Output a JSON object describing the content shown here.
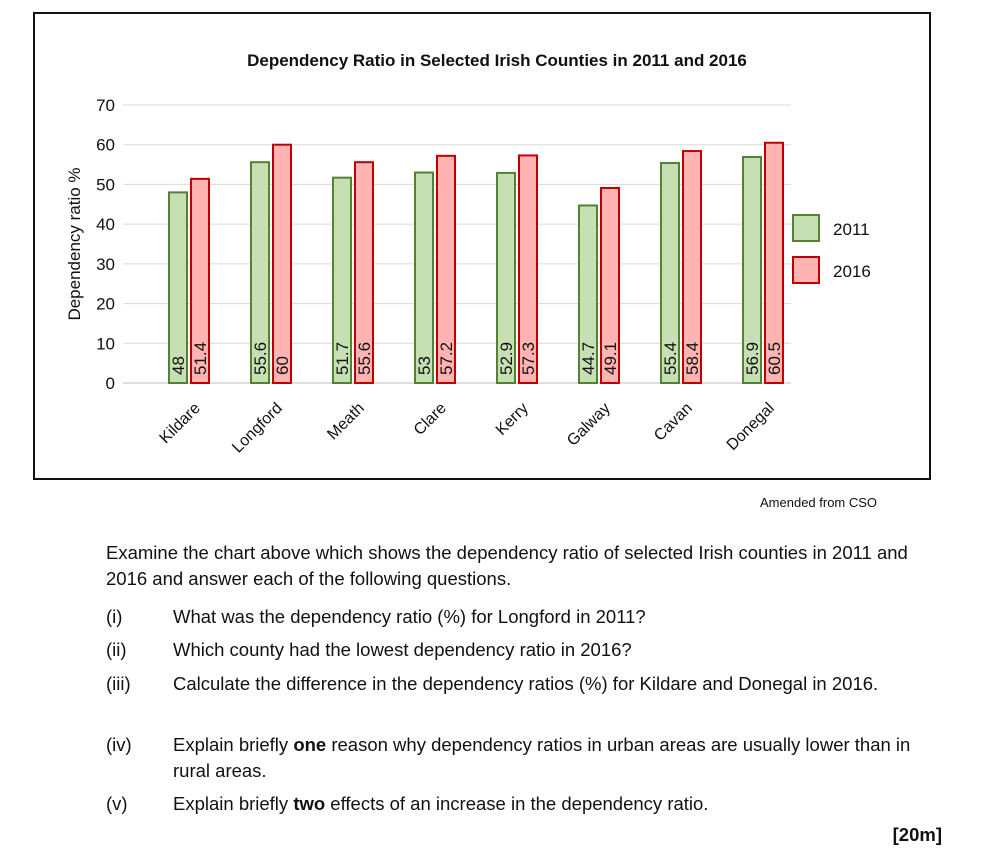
{
  "chart_data": {
    "type": "bar",
    "title": "Dependency Ratio in Selected Irish Counties in 2011 and 2016",
    "xlabel": "",
    "ylabel": "Dependency ratio %",
    "ylim": [
      0,
      70
    ],
    "yticks": [
      0,
      10,
      20,
      30,
      40,
      50,
      60,
      70
    ],
    "grid": true,
    "legend_position": "right",
    "categories": [
      "Kildare",
      "Longford",
      "Meath",
      "Clare",
      "Kerry",
      "Galway",
      "Cavan",
      "Donegal"
    ],
    "series": [
      {
        "name": "2011",
        "values": [
          48,
          55.6,
          51.7,
          53,
          52.9,
          44.7,
          55.4,
          56.9
        ],
        "labels": [
          "48",
          "55.6",
          "51.7",
          "53",
          "52.9",
          "44.7",
          "55.4",
          "56.9"
        ],
        "fill": "#c6e0b4",
        "stroke": "#548235"
      },
      {
        "name": "2016",
        "values": [
          51.4,
          60,
          55.6,
          57.2,
          57.3,
          49.1,
          58.4,
          60.5
        ],
        "labels": [
          "51.4",
          "60",
          "55.6",
          "57.2",
          "57.3",
          "49.1",
          "58.4",
          "60.5"
        ],
        "fill": "#ffb3b3",
        "stroke": "#c00000"
      }
    ],
    "source": "Amended from CSO"
  },
  "text": {
    "intro": "Examine the chart above which shows the dependency ratio of selected Irish counties in 2011 and 2016 and answer each of the following questions.",
    "marks": "[20m]"
  },
  "questions": [
    {
      "num": "(i)",
      "text": "What was the dependency ratio (%) for Longford in 2011?"
    },
    {
      "num": "(ii)",
      "text": "Which county had the lowest dependency ratio in 2016?"
    },
    {
      "num": "(iii)",
      "text": "Calculate the difference in the dependency ratios (%) for Kildare and Donegal in 2016."
    },
    {
      "num": "(iv)",
      "pre": "Explain briefly ",
      "bold": "one",
      "post": " reason why dependency ratios in urban areas are usually lower than in rural areas."
    },
    {
      "num": "(v)",
      "pre": "Explain briefly ",
      "bold": "two",
      "post": " effects of an increase in the dependency ratio."
    }
  ]
}
